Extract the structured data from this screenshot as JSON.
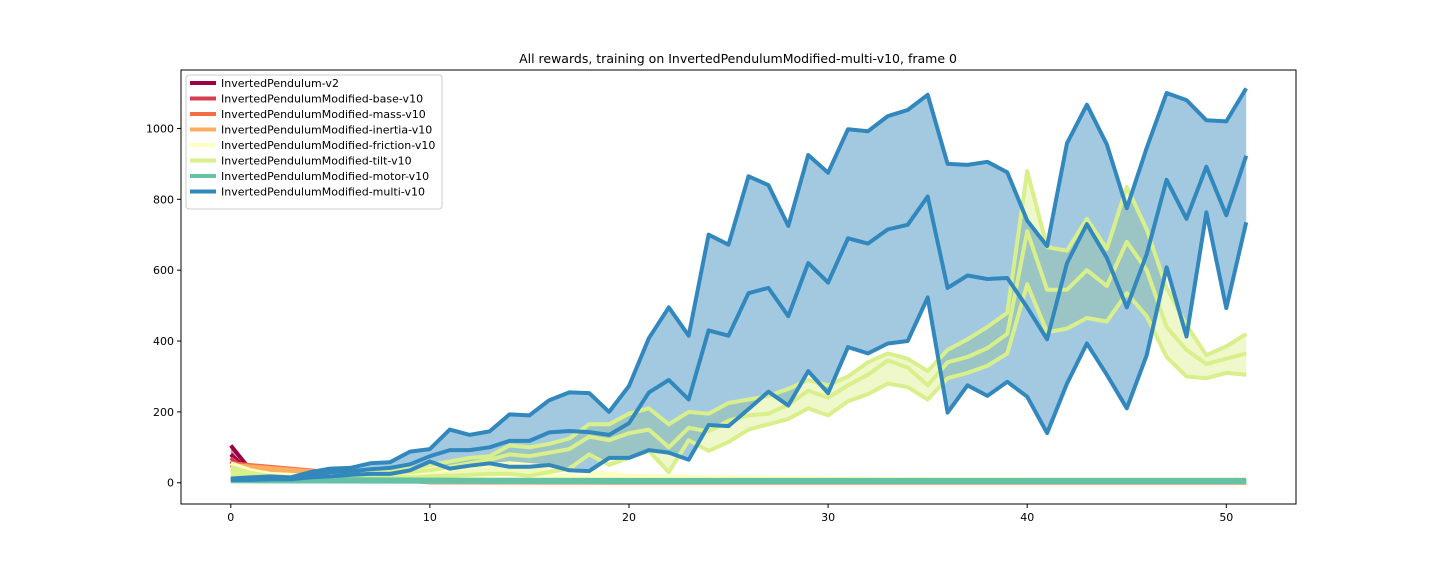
{
  "chart_data": {
    "type": "line",
    "title": "All rewards, training on InvertedPendulumModified-multi-v10, frame 0",
    "xlabel": "",
    "ylabel": "",
    "xlim": [
      -2.5,
      53.5
    ],
    "ylim": [
      -60,
      1165
    ],
    "xticks": [
      0,
      10,
      20,
      30,
      40,
      50
    ],
    "yticks": [
      0,
      200,
      400,
      600,
      800,
      1000
    ],
    "grid": false,
    "legend": "top-left",
    "series": [
      {
        "name": "InvertedPendulum-v2",
        "color": "#9e0142",
        "x": [
          0,
          1,
          2,
          3
        ],
        "mean": [
          80,
          25,
          10,
          8
        ],
        "upper": [
          105,
          35,
          12,
          9
        ],
        "lower": [
          60,
          15,
          8,
          7
        ]
      },
      {
        "name": "InvertedPendulumModified-base-v10",
        "color": "#d53e4f",
        "x": [
          0,
          1,
          2,
          3
        ],
        "mean": [
          60,
          20,
          9,
          8
        ],
        "upper": [
          70,
          25,
          11,
          9
        ],
        "lower": [
          50,
          15,
          8,
          7
        ]
      },
      {
        "name": "InvertedPendulumModified-mass-v10",
        "color": "#f46d43",
        "x": [
          0,
          10,
          20,
          30,
          40,
          51
        ],
        "mean": [
          50,
          3,
          2,
          2,
          2,
          2
        ],
        "upper": [
          55,
          5,
          3,
          3,
          3,
          3
        ],
        "lower": [
          45,
          1,
          0,
          0,
          0,
          0
        ]
      },
      {
        "name": "InvertedPendulumModified-inertia-v10",
        "color": "#fdae61",
        "x": [
          0,
          10,
          20,
          30,
          40,
          51
        ],
        "mean": [
          45,
          4,
          3,
          3,
          3,
          3
        ],
        "upper": [
          50,
          6,
          4,
          4,
          4,
          4
        ],
        "lower": [
          40,
          2,
          1,
          1,
          1,
          1
        ]
      },
      {
        "name": "InvertedPendulumModified-friction-v10",
        "color": "#ffffbf",
        "x": [
          0,
          1,
          2,
          4,
          6,
          8,
          10,
          12,
          14,
          16,
          18,
          20,
          25,
          30,
          40,
          51
        ],
        "mean": [
          40,
          25,
          15,
          10,
          10,
          12,
          15,
          20,
          25,
          20,
          15,
          10,
          8,
          6,
          5,
          5
        ],
        "upper": [
          55,
          35,
          25,
          20,
          22,
          25,
          30,
          45,
          55,
          45,
          30,
          20,
          15,
          12,
          10,
          10
        ],
        "lower": [
          25,
          15,
          8,
          5,
          4,
          5,
          6,
          8,
          10,
          8,
          6,
          4,
          3,
          2,
          2,
          2
        ]
      },
      {
        "name": "InvertedPendulumModified-tilt-v10",
        "color": "#d9ef8b",
        "x": [
          0,
          1,
          2,
          3,
          4,
          5,
          6,
          7,
          8,
          9,
          10,
          11,
          12,
          13,
          14,
          15,
          16,
          17,
          18,
          19,
          20,
          21,
          22,
          23,
          24,
          25,
          26,
          27,
          28,
          29,
          30,
          31,
          32,
          33,
          34,
          35,
          36,
          37,
          38,
          39,
          40,
          41,
          42,
          43,
          44,
          45,
          46,
          47,
          48,
          49,
          50,
          51
        ],
        "mean": [
          35,
          20,
          12,
          10,
          12,
          15,
          18,
          22,
          25,
          30,
          35,
          45,
          55,
          65,
          80,
          75,
          85,
          95,
          130,
          120,
          140,
          150,
          100,
          155,
          145,
          175,
          190,
          195,
          220,
          260,
          240,
          275,
          305,
          345,
          325,
          275,
          340,
          355,
          380,
          420,
          710,
          545,
          545,
          600,
          555,
          680,
          600,
          440,
          375,
          335,
          350,
          365
        ],
        "upper": [
          45,
          28,
          18,
          15,
          18,
          22,
          26,
          30,
          35,
          40,
          50,
          60,
          70,
          75,
          105,
          100,
          110,
          125,
          165,
          165,
          195,
          210,
          165,
          200,
          195,
          225,
          235,
          245,
          265,
          290,
          275,
          300,
          340,
          365,
          350,
          315,
          375,
          405,
          440,
          480,
          880,
          665,
          655,
          745,
          660,
          835,
          715,
          550,
          445,
          360,
          385,
          420
        ],
        "lower": [
          25,
          12,
          8,
          5,
          6,
          8,
          10,
          12,
          14,
          16,
          18,
          20,
          22,
          25,
          25,
          20,
          30,
          40,
          80,
          50,
          70,
          90,
          30,
          120,
          90,
          115,
          150,
          165,
          180,
          210,
          190,
          230,
          250,
          280,
          270,
          235,
          295,
          310,
          330,
          365,
          560,
          425,
          435,
          465,
          455,
          535,
          470,
          355,
          300,
          295,
          310,
          305
        ]
      },
      {
        "name": "InvertedPendulumModified-motor-v10",
        "color": "#66c2a5",
        "x": [
          0,
          10,
          20,
          30,
          40,
          51
        ],
        "mean": [
          8,
          6,
          5,
          5,
          5,
          5
        ],
        "upper": [
          12,
          9,
          8,
          8,
          8,
          8
        ],
        "lower": [
          4,
          3,
          2,
          2,
          2,
          2
        ]
      },
      {
        "name": "InvertedPendulumModified-multi-v10",
        "color": "#3288bd",
        "x": [
          0,
          1,
          2,
          3,
          4,
          5,
          6,
          7,
          8,
          9,
          10,
          11,
          12,
          13,
          14,
          15,
          16,
          17,
          18,
          19,
          20,
          21,
          22,
          23,
          24,
          25,
          26,
          27,
          28,
          29,
          30,
          31,
          32,
          33,
          34,
          35,
          36,
          37,
          38,
          39,
          40,
          41,
          42,
          43,
          44,
          45,
          46,
          47,
          48,
          49,
          50,
          51
        ],
        "mean": [
          10,
          12,
          14,
          12,
          20,
          30,
          32,
          38,
          42,
          52,
          75,
          92,
          92,
          100,
          118,
          118,
          142,
          146,
          143,
          135,
          168,
          255,
          290,
          235,
          430,
          415,
          535,
          550,
          470,
          620,
          565,
          690,
          675,
          715,
          728,
          808,
          550,
          585,
          575,
          578,
          495,
          405,
          620,
          730,
          635,
          495,
          645,
          855,
          745,
          892,
          755,
          923
        ],
        "upper": [
          12,
          15,
          18,
          15,
          30,
          40,
          42,
          55,
          58,
          88,
          95,
          150,
          135,
          145,
          193,
          190,
          233,
          255,
          253,
          200,
          273,
          408,
          495,
          415,
          700,
          672,
          865,
          840,
          725,
          925,
          875,
          998,
          992,
          1035,
          1052,
          1095,
          900,
          897,
          906,
          876,
          740,
          668,
          958,
          1067,
          955,
          775,
          945,
          1100,
          1080,
          1023,
          1020,
          1113
        ],
        "lower": [
          8,
          8,
          10,
          10,
          15,
          18,
          22,
          25,
          25,
          35,
          60,
          40,
          48,
          55,
          45,
          45,
          50,
          35,
          33,
          70,
          70,
          92,
          85,
          65,
          163,
          160,
          208,
          257,
          218,
          315,
          253,
          383,
          365,
          393,
          400,
          523,
          198,
          275,
          245,
          285,
          243,
          140,
          280,
          393,
          305,
          210,
          360,
          608,
          413,
          763,
          493,
          735
        ]
      }
    ]
  }
}
